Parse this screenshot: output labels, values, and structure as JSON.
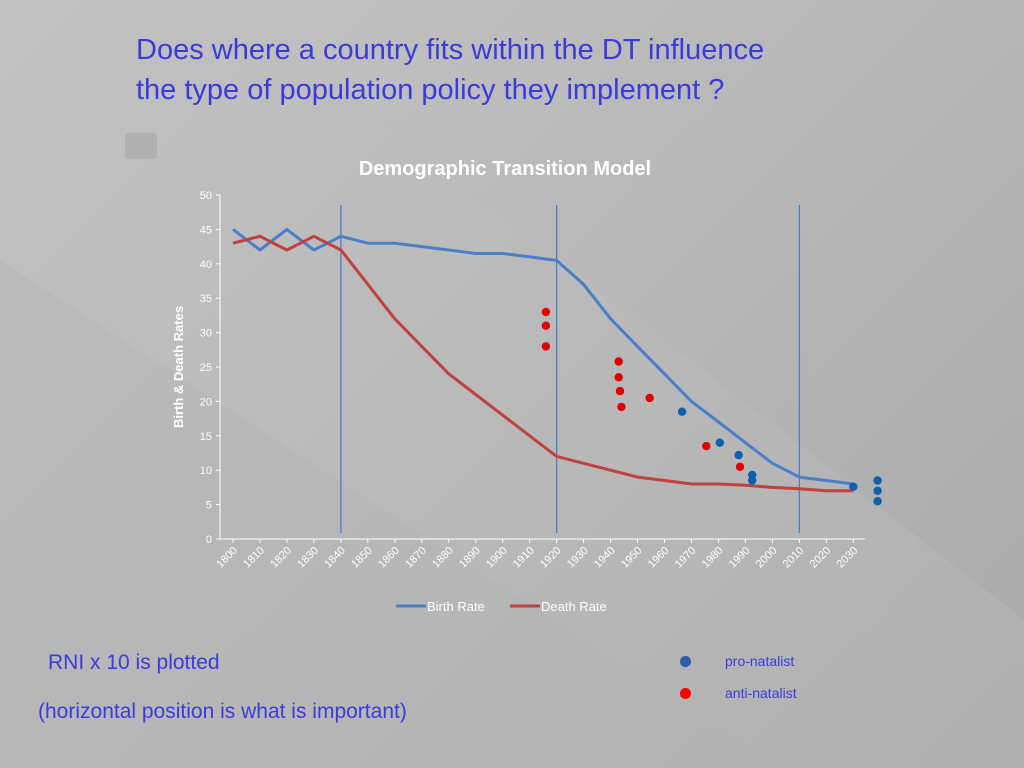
{
  "slide": {
    "title_line1": "Does where a country fits within the DT influence",
    "title_line2": "the type of population policy they implement ?",
    "note1": "RNI x 10 is plotted",
    "note2": "(horizontal position is what is important)"
  },
  "key": {
    "items": [
      {
        "label": "pro-natalist",
        "color": "#2e5ea8"
      },
      {
        "label": "anti-natalist",
        "color": "#ff0000"
      }
    ]
  },
  "colors": {
    "birth": "#4a7ec9",
    "death": "#c0413d",
    "pro_natalist": "#0d5fb0",
    "anti_natalist": "#e00000",
    "divider": "#4a7ec9",
    "text": "#ffffff",
    "accent": "#3b3bdc"
  },
  "chart_data": {
    "type": "line",
    "title": "Demographic Transition Model",
    "ylabel": "Birth & Death Rates",
    "xlabel": "",
    "ylim": [
      0,
      50
    ],
    "yticks": [
      0,
      5,
      10,
      15,
      20,
      25,
      30,
      35,
      40,
      45,
      50
    ],
    "categories": [
      "1800",
      "1810",
      "1820",
      "1830",
      "1840",
      "1850",
      "1860",
      "1870",
      "1880",
      "1890",
      "1900",
      "1910",
      "1920",
      "1930",
      "1940",
      "1950",
      "1960",
      "1970",
      "1980",
      "1990",
      "2000",
      "2010",
      "2020",
      "2030"
    ],
    "series": [
      {
        "name": "Birth Rate",
        "color": "#4a7ec9",
        "values": [
          45,
          42,
          45,
          42,
          44,
          43,
          43,
          42.5,
          42,
          41.5,
          41.5,
          41,
          40.5,
          37,
          32,
          28,
          24,
          20,
          17,
          14,
          11,
          9,
          8.5,
          8
        ]
      },
      {
        "name": "Death Rate",
        "color": "#c0413d",
        "values": [
          43,
          44,
          42,
          44,
          42,
          37,
          32,
          28,
          24,
          21,
          18,
          15,
          12,
          11,
          10,
          9,
          8.5,
          8,
          8,
          7.8,
          7.5,
          7.3,
          7,
          7
        ]
      }
    ],
    "stage_dividers": [
      1840,
      1920,
      2010
    ],
    "grid": false,
    "legend": "bottom",
    "scatter": [
      {
        "policy": "anti-natalist",
        "x": 1916,
        "y": 33
      },
      {
        "policy": "anti-natalist",
        "x": 1916,
        "y": 31
      },
      {
        "policy": "anti-natalist",
        "x": 1916,
        "y": 28
      },
      {
        "policy": "anti-natalist",
        "x": 1943,
        "y": 25.8
      },
      {
        "policy": "anti-natalist",
        "x": 1943,
        "y": 23.5
      },
      {
        "policy": "anti-natalist",
        "x": 1943.5,
        "y": 21.5
      },
      {
        "policy": "anti-natalist",
        "x": 1944,
        "y": 19.2
      },
      {
        "policy": "anti-natalist",
        "x": 1954.5,
        "y": 20.5
      },
      {
        "policy": "pro-natalist",
        "x": 1966.5,
        "y": 18.5
      },
      {
        "policy": "anti-natalist",
        "x": 1975.5,
        "y": 13.5
      },
      {
        "policy": "pro-natalist",
        "x": 1980.5,
        "y": 14
      },
      {
        "policy": "pro-natalist",
        "x": 1987.5,
        "y": 12.2
      },
      {
        "policy": "anti-natalist",
        "x": 1988,
        "y": 10.5
      },
      {
        "policy": "pro-natalist",
        "x": 1992.5,
        "y": 9.3
      },
      {
        "policy": "pro-natalist",
        "x": 1992.5,
        "y": 8.5
      },
      {
        "policy": "pro-natalist",
        "x": 2030,
        "y": 7.6
      },
      {
        "policy": "pro-natalist",
        "x": 2039,
        "y": 8.5
      },
      {
        "policy": "pro-natalist",
        "x": 2039,
        "y": 7
      },
      {
        "policy": "pro-natalist",
        "x": 2039,
        "y": 5.5
      }
    ]
  }
}
